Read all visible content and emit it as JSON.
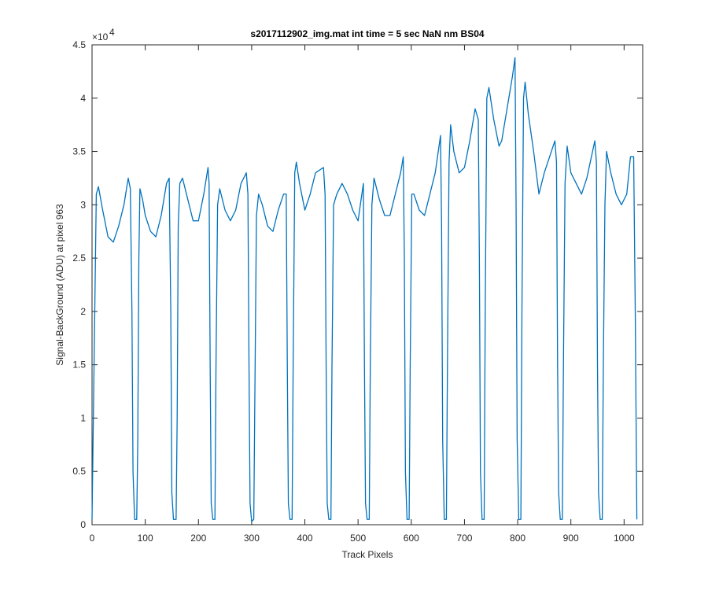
{
  "chart_data": {
    "type": "line",
    "title": "s2017112902_img.mat int time = 5 sec  NaN nm BS04",
    "x_label": "Track Pixels",
    "y_label": "Signal-BackGround (ADU) at pixel 963",
    "y_exponent_label": {
      "base": "×10",
      "exponent": "4"
    },
    "xlim": [
      0,
      1035
    ],
    "ylim": [
      0,
      4.5
    ],
    "xticks": [
      0,
      100,
      200,
      300,
      400,
      500,
      600,
      700,
      800,
      900,
      1000
    ],
    "yticks": [
      0,
      0.5,
      1,
      1.5,
      2,
      2.5,
      3,
      3.5,
      4,
      4.5
    ],
    "grid": false,
    "x": [
      0,
      8,
      12,
      20,
      30,
      40,
      50,
      60,
      68,
      72,
      75,
      77,
      80,
      84,
      86,
      88,
      90,
      95,
      100,
      110,
      120,
      130,
      140,
      145,
      148,
      150,
      153,
      158,
      160,
      162,
      165,
      170,
      180,
      190,
      200,
      210,
      218,
      220,
      222,
      224,
      227,
      231,
      233,
      236,
      240,
      250,
      260,
      270,
      280,
      290,
      293,
      295,
      297,
      300,
      304,
      306,
      309,
      313,
      320,
      330,
      340,
      350,
      360,
      365,
      367,
      369,
      372,
      376,
      378,
      381,
      384,
      390,
      400,
      410,
      420,
      435,
      438,
      440,
      442,
      445,
      449,
      451,
      454,
      460,
      470,
      480,
      490,
      500,
      510,
      512,
      514,
      517,
      521,
      523,
      526,
      530,
      540,
      550,
      560,
      570,
      580,
      585,
      587,
      589,
      592,
      596,
      598,
      601,
      605,
      615,
      625,
      635,
      645,
      655,
      657,
      659,
      662,
      666,
      668,
      671,
      674,
      680,
      690,
      700,
      710,
      720,
      726,
      728,
      730,
      733,
      737,
      739,
      742,
      746,
      755,
      765,
      770,
      780,
      790,
      795,
      797,
      799,
      802,
      806,
      808,
      811,
      814,
      820,
      830,
      840,
      850,
      860,
      870,
      873,
      875,
      877,
      880,
      884,
      886,
      889,
      893,
      900,
      910,
      920,
      930,
      945,
      948,
      950,
      952,
      955,
      959,
      961,
      964,
      967,
      975,
      985,
      995,
      1005,
      1012,
      1018,
      1021,
      1024
    ],
    "series": [
      {
        "color": "#0072bd",
        "values": [
          0.05,
          3.1,
          3.17,
          2.95,
          2.7,
          2.65,
          2.8,
          3.0,
          3.25,
          3.15,
          2.0,
          0.5,
          0.05,
          0.05,
          0.8,
          2.5,
          3.15,
          3.05,
          2.9,
          2.75,
          2.7,
          2.9,
          3.2,
          3.25,
          2.0,
          0.3,
          0.05,
          0.05,
          1.0,
          2.8,
          3.2,
          3.25,
          3.05,
          2.85,
          2.85,
          3.1,
          3.35,
          3.2,
          1.5,
          0.2,
          0.05,
          0.05,
          1.5,
          3.0,
          3.15,
          2.95,
          2.85,
          2.95,
          3.2,
          3.3,
          3.1,
          1.5,
          0.2,
          0.03,
          0.05,
          1.2,
          2.9,
          3.1,
          3.0,
          2.8,
          2.75,
          2.95,
          3.1,
          3.1,
          1.5,
          0.2,
          0.05,
          0.05,
          1.5,
          3.3,
          3.4,
          3.2,
          2.95,
          3.1,
          3.3,
          3.35,
          3.1,
          1.5,
          0.2,
          0.05,
          0.05,
          1.5,
          3.0,
          3.1,
          3.2,
          3.1,
          2.95,
          2.85,
          3.2,
          1.5,
          0.2,
          0.05,
          0.05,
          1.5,
          3.0,
          3.25,
          3.05,
          2.9,
          2.9,
          3.1,
          3.3,
          3.45,
          2.5,
          0.5,
          0.05,
          0.05,
          1.5,
          3.1,
          3.1,
          2.95,
          2.9,
          3.1,
          3.3,
          3.65,
          2.8,
          0.8,
          0.05,
          0.05,
          1.5,
          3.4,
          3.75,
          3.5,
          3.3,
          3.35,
          3.6,
          3.9,
          3.8,
          2.5,
          0.5,
          0.05,
          0.05,
          2.0,
          4.0,
          4.1,
          3.8,
          3.55,
          3.6,
          3.9,
          4.2,
          4.38,
          3.0,
          0.8,
          0.05,
          0.05,
          2.0,
          4.0,
          4.15,
          3.85,
          3.5,
          3.1,
          3.3,
          3.45,
          3.6,
          3.4,
          1.5,
          0.3,
          0.05,
          0.05,
          1.5,
          3.2,
          3.55,
          3.3,
          3.2,
          3.1,
          3.25,
          3.6,
          3.4,
          1.5,
          0.3,
          0.05,
          0.05,
          1.5,
          3.0,
          3.5,
          3.3,
          3.1,
          3.0,
          3.1,
          3.45,
          3.45,
          2.0,
          0.05
        ]
      }
    ]
  }
}
